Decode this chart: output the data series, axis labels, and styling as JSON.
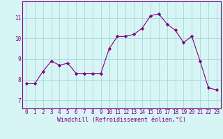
{
  "x": [
    0,
    1,
    2,
    3,
    4,
    5,
    6,
    7,
    8,
    9,
    10,
    11,
    12,
    13,
    14,
    15,
    16,
    17,
    18,
    19,
    20,
    21,
    22,
    23
  ],
  "y": [
    7.8,
    7.8,
    8.4,
    8.9,
    8.7,
    8.8,
    8.3,
    8.3,
    8.3,
    8.3,
    9.5,
    10.1,
    10.1,
    10.2,
    10.5,
    11.1,
    11.2,
    10.7,
    10.4,
    9.8,
    10.1,
    8.9,
    7.6,
    7.5
  ],
  "line_color": "#800080",
  "marker": "D",
  "marker_size": 2.2,
  "bg_color": "#d8f5f5",
  "grid_color": "#aadddd",
  "xlabel": "Windchill (Refroidissement éolien,°C)",
  "xlabel_color": "#800080",
  "xlabel_fontsize": 6.0,
  "tick_color": "#800080",
  "tick_fontsize": 5.5,
  "yticks": [
    7,
    8,
    9,
    10,
    11
  ],
  "ylim": [
    6.6,
    11.8
  ],
  "xlim": [
    -0.5,
    23.5
  ]
}
